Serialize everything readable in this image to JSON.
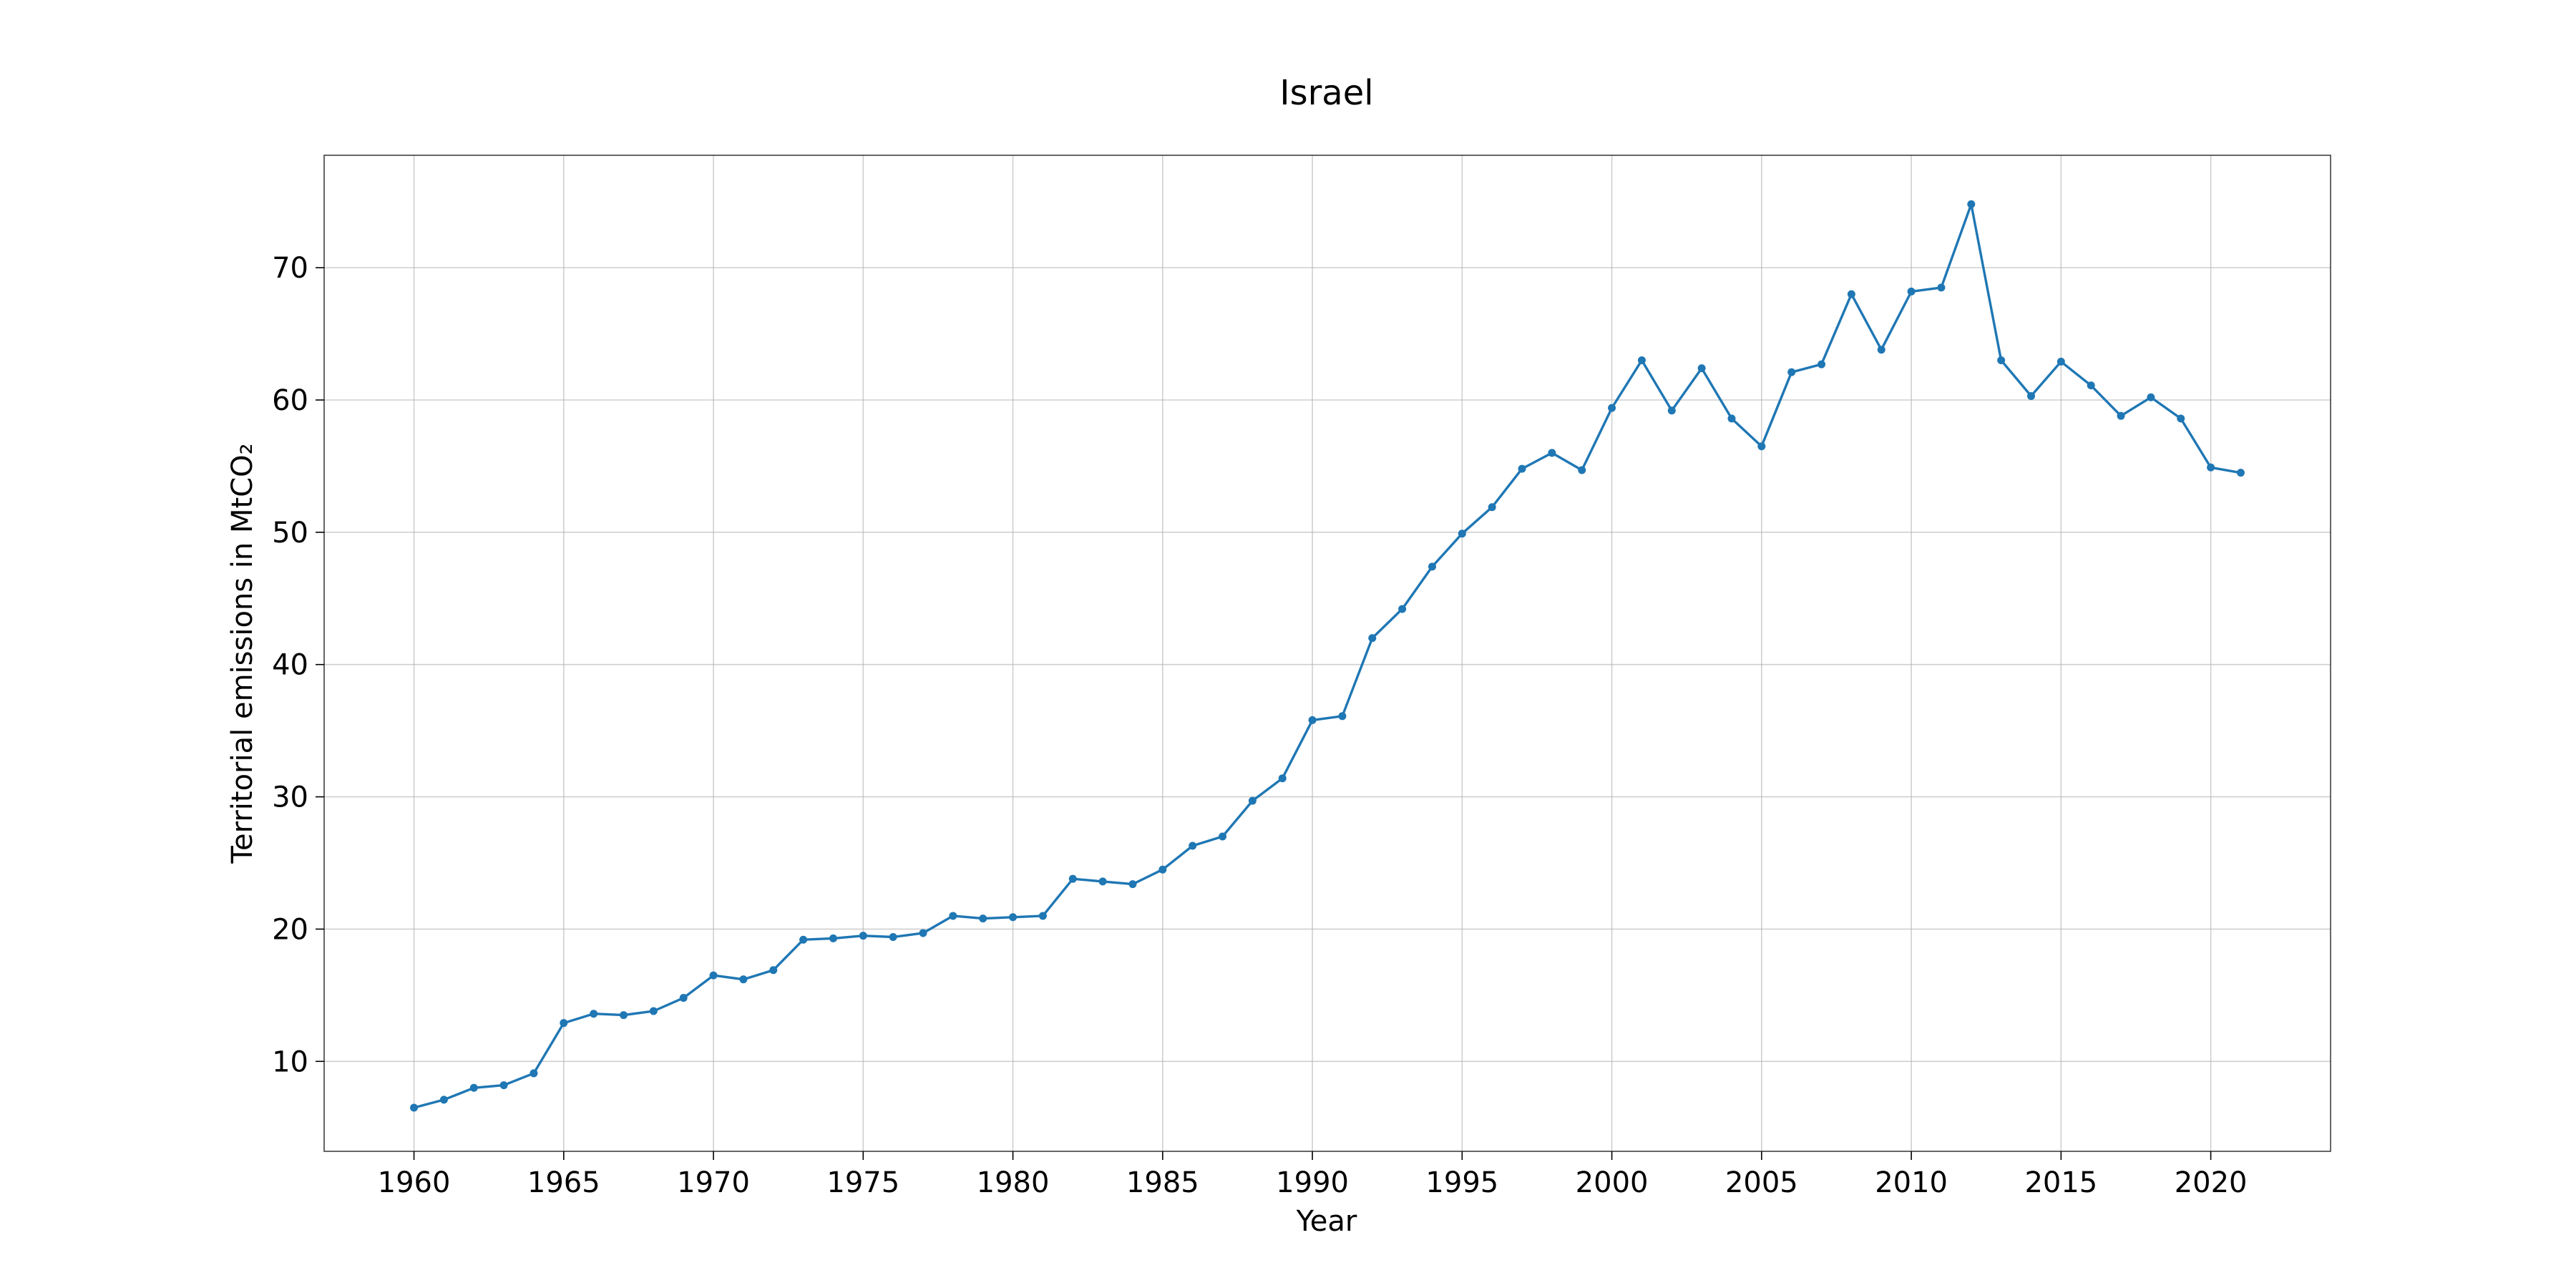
{
  "chart_data": {
    "type": "line",
    "title": "Israel",
    "xlabel": "Year",
    "ylabel": "Territorial emissions in MtCO₂",
    "xlim": [
      1957,
      2024
    ],
    "ylim": [
      3.2,
      78.5
    ],
    "xticks": [
      1960,
      1965,
      1970,
      1975,
      1980,
      1985,
      1990,
      1995,
      2000,
      2005,
      2010,
      2015,
      2020
    ],
    "yticks": [
      10,
      20,
      30,
      40,
      50,
      60,
      70
    ],
    "grid": true,
    "color": "#1f77b4",
    "x": [
      1960,
      1961,
      1962,
      1963,
      1964,
      1965,
      1966,
      1967,
      1968,
      1969,
      1970,
      1971,
      1972,
      1973,
      1974,
      1975,
      1976,
      1977,
      1978,
      1979,
      1980,
      1981,
      1982,
      1983,
      1984,
      1985,
      1986,
      1987,
      1988,
      1989,
      1990,
      1991,
      1992,
      1993,
      1994,
      1995,
      1996,
      1997,
      1998,
      1999,
      2000,
      2001,
      2002,
      2003,
      2004,
      2005,
      2006,
      2007,
      2008,
      2009,
      2010,
      2011,
      2012,
      2013,
      2014,
      2015,
      2016,
      2017,
      2018,
      2019,
      2020,
      2021
    ],
    "values": [
      6.5,
      7.1,
      8.0,
      8.2,
      9.1,
      12.9,
      13.6,
      13.5,
      13.8,
      14.8,
      16.5,
      16.2,
      16.9,
      19.2,
      19.3,
      19.5,
      19.4,
      19.7,
      21.0,
      20.8,
      20.9,
      21.0,
      23.8,
      23.6,
      23.4,
      24.5,
      26.3,
      27.0,
      29.7,
      31.4,
      35.8,
      36.1,
      42.0,
      44.2,
      47.4,
      49.9,
      51.9,
      54.8,
      56.0,
      54.7,
      59.4,
      63.0,
      59.2,
      62.4,
      58.6,
      56.5,
      62.1,
      62.7,
      68.0,
      63.8,
      68.2,
      68.5,
      74.8,
      63.0,
      60.3,
      62.9,
      61.1,
      58.8,
      60.2,
      58.6,
      54.9,
      54.5
    ]
  }
}
